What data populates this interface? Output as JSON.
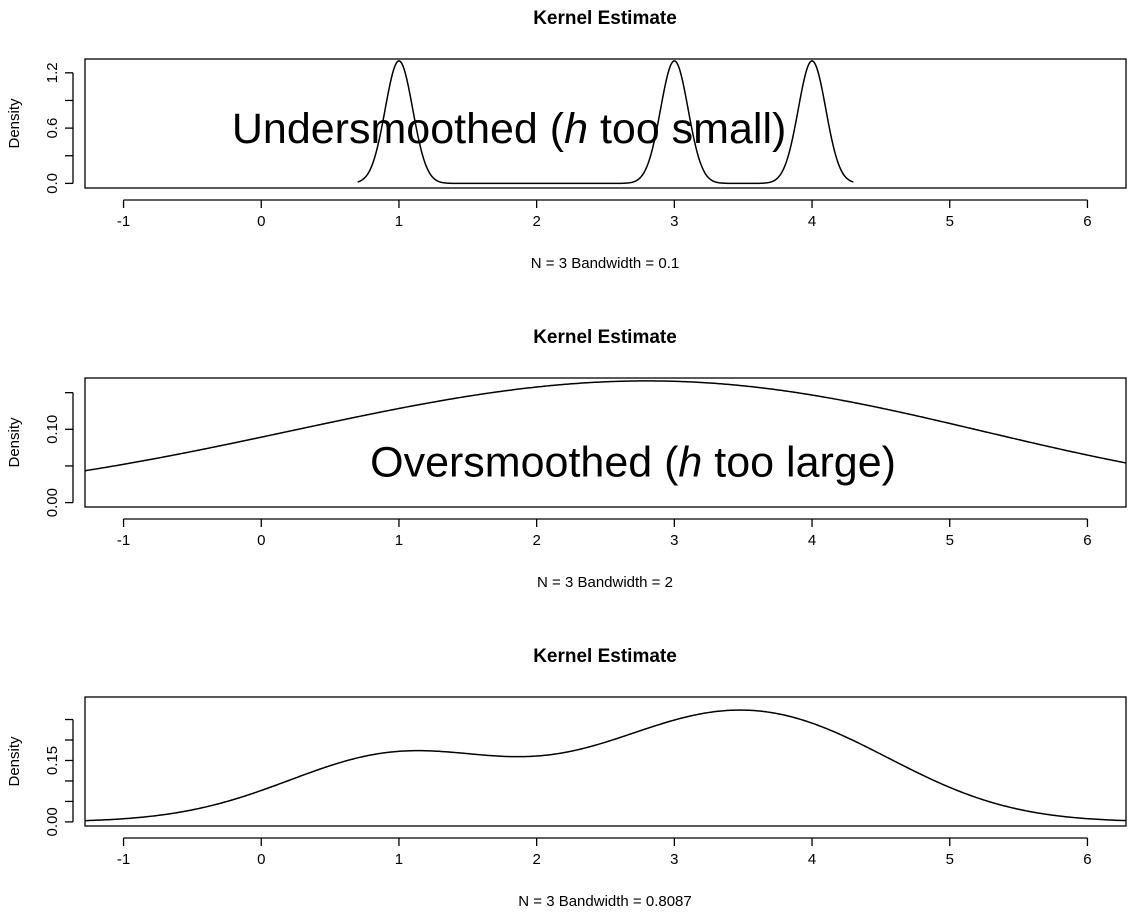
{
  "chart_data": [
    {
      "type": "line",
      "title": "Kernel Estimate",
      "xlabel": "N = 3   Bandwidth = 0.1",
      "ylabel": "Density",
      "xlim": [
        -1.28,
        6.28
      ],
      "ylim": [
        -0.05,
        1.35
      ],
      "xticks": [
        "-1",
        "0",
        "1",
        "2",
        "3",
        "4",
        "5",
        "6"
      ],
      "yticks": [
        "0.0",
        "0.6",
        "1.2"
      ],
      "minor_yticks": [
        0.3,
        0.9
      ],
      "extra_yticks": [],
      "annotation": {
        "before": "Undersmoothed (",
        "italic": "h",
        "after": " too small)",
        "x": 1.8,
        "y": 0.6
      },
      "kde": {
        "points": [
          1,
          3,
          4
        ],
        "bandwidth": 0.1,
        "from": 0.7,
        "to": 4.3
      },
      "series": [
        {
          "x": [
            1,
            3,
            4
          ],
          "values": [
            1.33,
            1.33,
            1.33
          ]
        }
      ]
    },
    {
      "type": "line",
      "title": "Kernel Estimate",
      "xlabel": "N = 3   Bandwidth = 2",
      "ylabel": "Density",
      "xlim": [
        -1.28,
        6.28
      ],
      "ylim": [
        -0.006,
        0.17
      ],
      "xticks": [
        "-1",
        "0",
        "1",
        "2",
        "3",
        "4",
        "5",
        "6"
      ],
      "yticks": [
        "0.00",
        "0.10"
      ],
      "minor_yticks": [
        0.05
      ],
      "extra_yticks": [
        0.15
      ],
      "annotation": {
        "before": "Oversmoothed (",
        "italic": "h",
        "after": " too large)",
        "x": 2.7,
        "y": 0.056
      },
      "kde": {
        "points": [
          1,
          3,
          4
        ],
        "bandwidth": 2,
        "from": -1.28,
        "to": 6.28
      },
      "series": [
        {
          "x": [
            -1,
            1,
            2.8,
            5,
            6
          ],
          "values": [
            0.061,
            0.127,
            0.164,
            0.11,
            0.069
          ]
        }
      ]
    },
    {
      "type": "line",
      "title": "Kernel Estimate",
      "xlabel": "N = 3   Bandwidth = 0.8087",
      "ylabel": "Density",
      "xlim": [
        -1.28,
        6.28
      ],
      "ylim": [
        -0.01,
        0.305
      ],
      "xticks": [
        "-1",
        "0",
        "1",
        "2",
        "3",
        "4",
        "5",
        "6"
      ],
      "yticks": [
        "0.00",
        "0.15"
      ],
      "minor_yticks": [
        0.05,
        0.1,
        0.2,
        0.25
      ],
      "extra_yticks": [],
      "annotation": null,
      "kde": {
        "points": [
          1,
          3,
          4
        ],
        "bandwidth": 0.8087,
        "from": -1.28,
        "to": 6.28
      },
      "series": [
        {
          "x": [
            0,
            1.1,
            1.9,
            3.5,
            5
          ],
          "values": [
            0.08,
            0.18,
            0.165,
            0.29,
            0.07
          ]
        }
      ]
    }
  ]
}
